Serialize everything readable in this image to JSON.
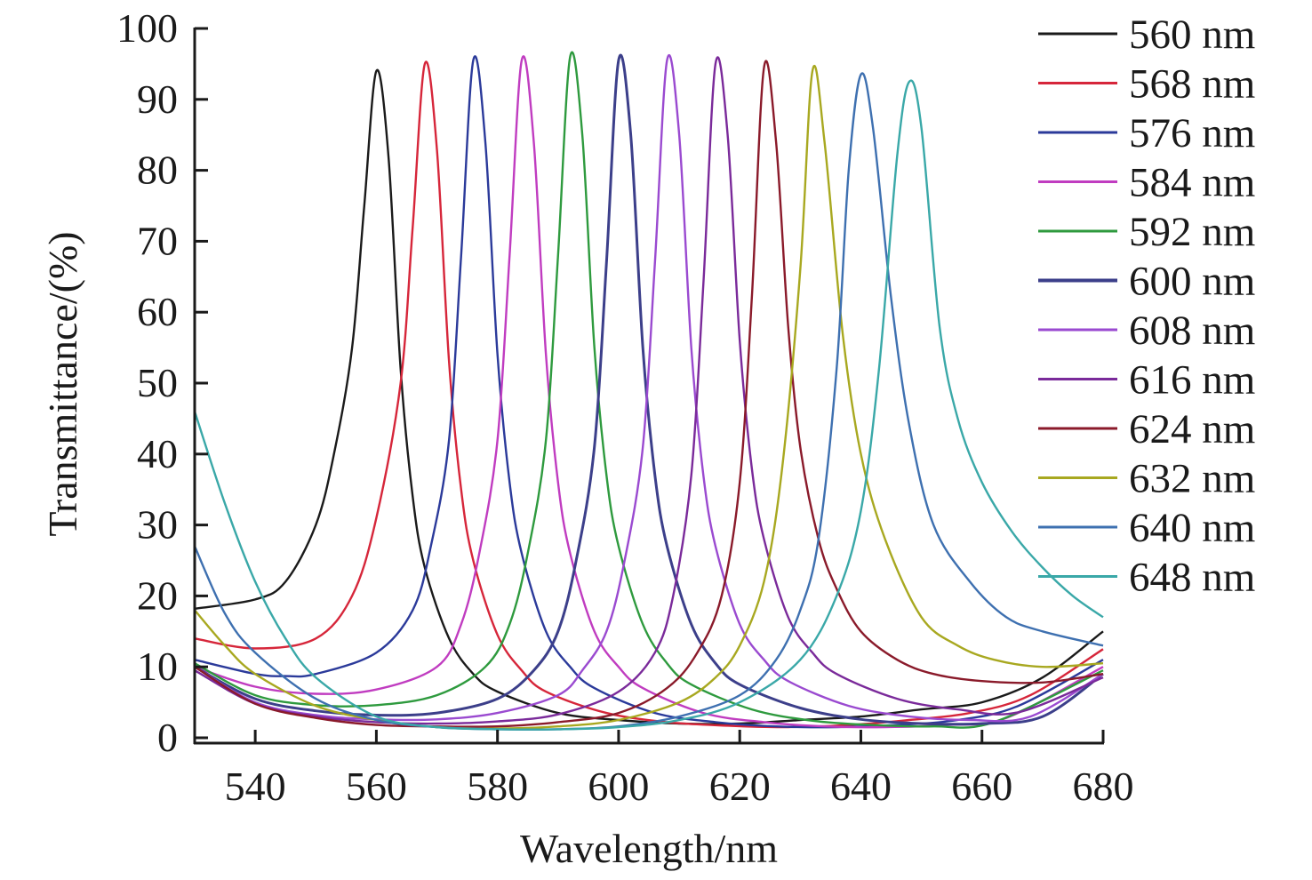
{
  "chart_data": {
    "type": "line",
    "xlabel": "Wavelength/nm",
    "ylabel": "Transmittance/(%)",
    "xlim": [
      530,
      680
    ],
    "ylim": [
      0,
      100
    ],
    "xticks": [
      540,
      560,
      580,
      600,
      620,
      640,
      660,
      680
    ],
    "yticks": [
      0,
      10,
      20,
      30,
      40,
      50,
      60,
      70,
      80,
      90,
      100
    ],
    "grid": false,
    "legend_position": "right",
    "series": [
      {
        "name": "560 nm",
        "color": "#1a1a1a",
        "x": [
          530,
          540,
          545,
          550,
          553,
          556,
          558,
          560,
          562,
          564,
          566,
          568,
          572,
          576,
          580,
          590,
          600,
          610,
          620,
          630,
          640,
          650,
          660,
          670,
          680
        ],
        "y": [
          18.2,
          19.5,
          22,
          30,
          40,
          55,
          75,
          94,
          82,
          52,
          34,
          24,
          14,
          9,
          6.5,
          3.5,
          2.5,
          2,
          2,
          2.5,
          3,
          4,
          5,
          8.5,
          15
        ]
      },
      {
        "name": "568 nm",
        "color": "#d6263a",
        "x": [
          530,
          540,
          550,
          556,
          560,
          564,
          566,
          568,
          570,
          572,
          574,
          576,
          580,
          584,
          588,
          598,
          608,
          618,
          628,
          638,
          648,
          658,
          668,
          680
        ],
        "y": [
          14,
          12.6,
          14,
          20,
          31,
          50,
          72,
          95,
          83,
          53,
          35,
          25,
          14.5,
          9.5,
          6.5,
          3.5,
          2.2,
          1.7,
          1.5,
          1.8,
          2.5,
          3.5,
          6,
          12.5
        ]
      },
      {
        "name": "576 nm",
        "color": "#2b3a9a",
        "x": [
          530,
          540,
          545,
          550,
          560,
          566,
          569,
          572,
          574,
          576,
          578,
          580,
          582,
          584,
          588,
          592,
          596,
          606,
          616,
          626,
          636,
          646,
          656,
          666,
          680
        ],
        "y": [
          11,
          9,
          8.7,
          9,
          12,
          18,
          27,
          42,
          68,
          95.5,
          84,
          54,
          36,
          26,
          15,
          10,
          7,
          3.5,
          2.2,
          1.6,
          1.5,
          1.8,
          2.5,
          4.5,
          11
        ]
      },
      {
        "name": "584 nm",
        "color": "#c03cc0",
        "x": [
          530,
          540,
          550,
          560,
          570,
          574,
          577,
          580,
          582,
          584,
          586,
          588,
          590,
          592,
          596,
          600,
          604,
          614,
          624,
          634,
          644,
          654,
          664,
          680
        ],
        "y": [
          10,
          7.2,
          6.2,
          6.8,
          10,
          16,
          26,
          42,
          68,
          95.5,
          84,
          54,
          36,
          26,
          15,
          10,
          7,
          3.5,
          2.2,
          1.6,
          1.5,
          1.8,
          2.8,
          10
        ]
      },
      {
        "name": "592 nm",
        "color": "#2e9a3e",
        "x": [
          530,
          540,
          550,
          560,
          570,
          578,
          582,
          585,
          588,
          590,
          592,
          594,
          596,
          598,
          600,
          604,
          608,
          612,
          622,
          632,
          642,
          652,
          662,
          680
        ],
        "y": [
          10.5,
          6,
          4.6,
          4.6,
          6,
          10,
          16,
          26,
          42,
          68,
          96,
          85,
          55,
          37,
          27,
          16,
          10.5,
          7.5,
          4,
          2.4,
          1.8,
          1.6,
          2.2,
          9.5
        ]
      },
      {
        "name": "600 nm",
        "color": "#3c3f8a",
        "x": [
          530,
          540,
          550,
          560,
          570,
          580,
          586,
          590,
          593,
          596,
          598,
          600,
          602,
          604,
          606,
          608,
          612,
          616,
          620,
          630,
          640,
          650,
          660,
          670,
          680
        ],
        "y": [
          10,
          5.5,
          3.8,
          3.2,
          3.5,
          5.5,
          9.5,
          15,
          25,
          41,
          67,
          95.5,
          85,
          55,
          37,
          27,
          16,
          10.5,
          7.5,
          4.2,
          2.6,
          2,
          2,
          3,
          9
        ]
      },
      {
        "name": "608 nm",
        "color": "#9a4ad0",
        "x": [
          530,
          540,
          550,
          560,
          570,
          580,
          590,
          594,
          598,
          601,
          604,
          606,
          608,
          610,
          612,
          614,
          616,
          620,
          624,
          628,
          638,
          648,
          658,
          668,
          680
        ],
        "y": [
          10,
          5,
          3.2,
          2.6,
          2.6,
          3.5,
          6,
          9.5,
          15,
          25,
          41,
          67,
          95.5,
          85,
          55,
          37,
          27,
          16,
          11,
          8,
          4.5,
          3,
          2.5,
          3,
          9
        ]
      },
      {
        "name": "616 nm",
        "color": "#7a2a9a",
        "x": [
          530,
          540,
          550,
          560,
          570,
          580,
          590,
          600,
          606,
          609,
          612,
          614,
          616,
          618,
          620,
          622,
          624,
          628,
          632,
          636,
          646,
          656,
          666,
          680
        ],
        "y": [
          9.5,
          4.8,
          3,
          2.2,
          2,
          2.3,
          3.3,
          6.5,
          12,
          20,
          37,
          64,
          95,
          85,
          56,
          38,
          28,
          17,
          12,
          9,
          5.5,
          4,
          3.6,
          8.5
        ]
      },
      {
        "name": "624 nm",
        "color": "#8a1a2a",
        "x": [
          530,
          540,
          550,
          560,
          570,
          580,
          590,
          600,
          608,
          613,
          617,
          620,
          622,
          624,
          626,
          628,
          630,
          633,
          636,
          640,
          646,
          652,
          660,
          670,
          680
        ],
        "y": [
          10,
          4.8,
          2.8,
          1.8,
          1.6,
          1.6,
          2.2,
          3.5,
          7,
          12,
          20,
          36,
          62,
          94.5,
          84,
          58,
          41,
          28,
          21,
          15,
          11,
          9,
          8,
          7.8,
          9
        ]
      },
      {
        "name": "632 nm",
        "color": "#a8a820",
        "x": [
          530,
          535,
          540,
          550,
          560,
          570,
          580,
          590,
          600,
          610,
          616,
          620,
          624,
          627,
          630,
          632,
          634,
          637,
          640,
          644,
          650,
          656,
          662,
          670,
          680
        ],
        "y": [
          18,
          13,
          9,
          4.5,
          2.5,
          1.5,
          1.3,
          1.6,
          2.5,
          5,
          8.5,
          13,
          22,
          38,
          66,
          94,
          84,
          57,
          40,
          28,
          17,
          13,
          11,
          10,
          10.5
        ]
      },
      {
        "name": "640 nm",
        "color": "#3e70b0",
        "x": [
          530,
          535,
          540,
          550,
          560,
          570,
          580,
          590,
          600,
          610,
          620,
          626,
          630,
          633,
          636,
          638,
          640,
          642,
          645,
          648,
          652,
          658,
          664,
          670,
          680
        ],
        "y": [
          27,
          17.5,
          12,
          5.5,
          2.5,
          1.5,
          1.2,
          1.2,
          1.6,
          3,
          6,
          11,
          18,
          28,
          52,
          80,
          93.5,
          86,
          62,
          44,
          30,
          22,
          17,
          15,
          13
        ]
      },
      {
        "name": "648 nm",
        "color": "#3aa8a8",
        "x": [
          530,
          535,
          540,
          545,
          550,
          560,
          570,
          580,
          590,
          600,
          610,
          620,
          630,
          636,
          640,
          643,
          646,
          648,
          650,
          653,
          656,
          660,
          665,
          670,
          675,
          680
        ],
        "y": [
          46,
          33,
          22,
          14,
          8.5,
          3,
          1.5,
          1.2,
          1.2,
          1.5,
          2.5,
          5,
          11,
          20,
          32,
          52,
          82,
          92.5,
          86,
          58,
          45,
          36,
          29,
          24,
          20,
          17
        ]
      }
    ]
  }
}
